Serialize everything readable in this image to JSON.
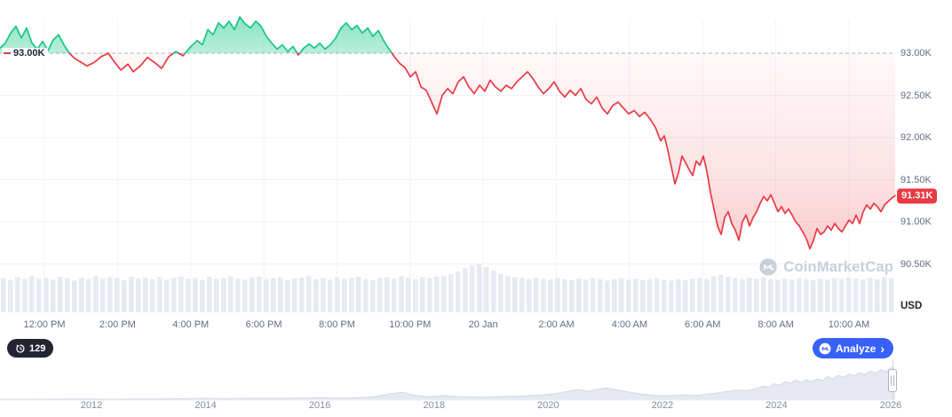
{
  "chart": {
    "baseline_label": "93.00K",
    "current_price_label": "91.31K",
    "unit_label": "USD",
    "y_ticks": [
      {
        "label": "93.00K",
        "value": 93.0
      },
      {
        "label": "92.50K",
        "value": 92.5
      },
      {
        "label": "92.00K",
        "value": 92.0
      },
      {
        "label": "91.50K",
        "value": 91.5
      },
      {
        "label": "91.00K",
        "value": 91.0
      },
      {
        "label": "90.50K",
        "value": 90.5
      }
    ],
    "x_ticks": [
      "12:00 PM",
      "2:00 PM",
      "4:00 PM",
      "6:00 PM",
      "8:00 PM",
      "10:00 PM",
      "20 Jan",
      "2:00 AM",
      "4:00 AM",
      "6:00 AM",
      "8:00 AM",
      "10:00 AM"
    ]
  },
  "controls": {
    "history_count": "129",
    "analyze_label": "Analyze"
  },
  "watermark": {
    "text": "CoinMarketCap"
  },
  "chart_data": {
    "type": "line",
    "title": "",
    "unit": "USD",
    "baseline": 93.0,
    "current": 91.31,
    "ylim": [
      90.3,
      93.5
    ],
    "up_color": "#16c784",
    "down_color": "#ea3943",
    "x_tick_labels": [
      "12:00 PM",
      "2:00 PM",
      "4:00 PM",
      "6:00 PM",
      "8:00 PM",
      "10:00 PM",
      "20 Jan",
      "2:00 AM",
      "4:00 AM",
      "6:00 AM",
      "8:00 AM",
      "10:00 AM"
    ],
    "series": [
      {
        "name": "price",
        "points": [
          [
            0,
            93.06
          ],
          [
            6,
            93.12
          ],
          [
            12,
            93.24
          ],
          [
            18,
            93.32
          ],
          [
            24,
            93.18
          ],
          [
            30,
            93.3
          ],
          [
            36,
            93.12
          ],
          [
            42,
            93.05
          ],
          [
            48,
            93.14
          ],
          [
            54,
            93.03
          ],
          [
            60,
            93.16
          ],
          [
            66,
            93.22
          ],
          [
            72,
            93.1
          ],
          [
            78,
            93.0
          ],
          [
            84,
            92.94
          ],
          [
            90,
            92.9
          ],
          [
            98,
            92.85
          ],
          [
            106,
            92.89
          ],
          [
            114,
            92.96
          ],
          [
            122,
            93.0
          ],
          [
            128,
            92.91
          ],
          [
            136,
            92.8
          ],
          [
            144,
            92.87
          ],
          [
            150,
            92.78
          ],
          [
            158,
            92.85
          ],
          [
            166,
            92.95
          ],
          [
            174,
            92.89
          ],
          [
            182,
            92.82
          ],
          [
            190,
            92.96
          ],
          [
            198,
            93.02
          ],
          [
            206,
            92.97
          ],
          [
            214,
            93.07
          ],
          [
            222,
            93.15
          ],
          [
            228,
            93.1
          ],
          [
            234,
            93.28
          ],
          [
            240,
            93.22
          ],
          [
            246,
            93.36
          ],
          [
            252,
            93.3
          ],
          [
            258,
            93.38
          ],
          [
            264,
            93.28
          ],
          [
            270,
            93.43
          ],
          [
            276,
            93.35
          ],
          [
            282,
            93.3
          ],
          [
            288,
            93.38
          ],
          [
            294,
            93.32
          ],
          [
            300,
            93.2
          ],
          [
            306,
            93.12
          ],
          [
            312,
            93.05
          ],
          [
            318,
            93.1
          ],
          [
            324,
            93.02
          ],
          [
            330,
            93.08
          ],
          [
            336,
            92.98
          ],
          [
            342,
            93.06
          ],
          [
            348,
            93.11
          ],
          [
            354,
            93.06
          ],
          [
            360,
            93.12
          ],
          [
            366,
            93.05
          ],
          [
            372,
            93.1
          ],
          [
            378,
            93.18
          ],
          [
            384,
            93.3
          ],
          [
            390,
            93.36
          ],
          [
            396,
            93.28
          ],
          [
            402,
            93.33
          ],
          [
            408,
            93.24
          ],
          [
            414,
            93.3
          ],
          [
            420,
            93.2
          ],
          [
            426,
            93.27
          ],
          [
            432,
            93.15
          ],
          [
            438,
            93.05
          ],
          [
            444,
            92.96
          ],
          [
            450,
            92.88
          ],
          [
            456,
            92.83
          ],
          [
            462,
            92.72
          ],
          [
            468,
            92.78
          ],
          [
            474,
            92.6
          ],
          [
            480,
            92.56
          ],
          [
            486,
            92.42
          ],
          [
            492,
            92.28
          ],
          [
            498,
            92.5
          ],
          [
            504,
            92.58
          ],
          [
            510,
            92.52
          ],
          [
            516,
            92.66
          ],
          [
            522,
            92.72
          ],
          [
            528,
            92.6
          ],
          [
            534,
            92.52
          ],
          [
            540,
            92.62
          ],
          [
            546,
            92.55
          ],
          [
            552,
            92.68
          ],
          [
            558,
            92.6
          ],
          [
            564,
            92.55
          ],
          [
            570,
            92.62
          ],
          [
            576,
            92.58
          ],
          [
            582,
            92.66
          ],
          [
            588,
            92.72
          ],
          [
            594,
            92.78
          ],
          [
            600,
            92.7
          ],
          [
            606,
            92.6
          ],
          [
            612,
            92.52
          ],
          [
            618,
            92.58
          ],
          [
            624,
            92.66
          ],
          [
            630,
            92.55
          ],
          [
            636,
            92.48
          ],
          [
            642,
            92.56
          ],
          [
            648,
            92.5
          ],
          [
            654,
            92.58
          ],
          [
            660,
            92.45
          ],
          [
            666,
            92.4
          ],
          [
            672,
            92.48
          ],
          [
            678,
            92.35
          ],
          [
            684,
            92.28
          ],
          [
            690,
            92.38
          ],
          [
            696,
            92.42
          ],
          [
            702,
            92.35
          ],
          [
            708,
            92.28
          ],
          [
            714,
            92.32
          ],
          [
            720,
            92.25
          ],
          [
            726,
            92.3
          ],
          [
            732,
            92.22
          ],
          [
            738,
            92.12
          ],
          [
            744,
            91.96
          ],
          [
            748,
            92.02
          ],
          [
            752,
            91.85
          ],
          [
            756,
            91.65
          ],
          [
            760,
            91.45
          ],
          [
            764,
            91.58
          ],
          [
            768,
            91.78
          ],
          [
            772,
            91.7
          ],
          [
            776,
            91.62
          ],
          [
            780,
            91.55
          ],
          [
            784,
            91.72
          ],
          [
            788,
            91.67
          ],
          [
            792,
            91.78
          ],
          [
            796,
            91.6
          ],
          [
            800,
            91.35
          ],
          [
            804,
            91.15
          ],
          [
            808,
            90.95
          ],
          [
            812,
            90.85
          ],
          [
            816,
            91.05
          ],
          [
            820,
            91.12
          ],
          [
            824,
            90.98
          ],
          [
            828,
            90.9
          ],
          [
            832,
            90.78
          ],
          [
            836,
            91.0
          ],
          [
            840,
            91.08
          ],
          [
            844,
            90.95
          ],
          [
            848,
            91.05
          ],
          [
            852,
            91.12
          ],
          [
            856,
            91.22
          ],
          [
            860,
            91.3
          ],
          [
            864,
            91.25
          ],
          [
            868,
            91.32
          ],
          [
            872,
            91.22
          ],
          [
            876,
            91.12
          ],
          [
            880,
            91.18
          ],
          [
            884,
            91.1
          ],
          [
            888,
            91.15
          ],
          [
            892,
            91.08
          ],
          [
            896,
            91.0
          ],
          [
            900,
            90.95
          ],
          [
            904,
            90.88
          ],
          [
            908,
            90.8
          ],
          [
            912,
            90.68
          ],
          [
            916,
            90.78
          ],
          [
            920,
            90.92
          ],
          [
            924,
            90.85
          ],
          [
            928,
            90.88
          ],
          [
            932,
            90.95
          ],
          [
            936,
            90.9
          ],
          [
            940,
            90.98
          ],
          [
            944,
            90.92
          ],
          [
            948,
            90.88
          ],
          [
            952,
            90.95
          ],
          [
            956,
            91.02
          ],
          [
            960,
            90.98
          ],
          [
            964,
            91.08
          ],
          [
            968,
            90.98
          ],
          [
            972,
            91.12
          ],
          [
            976,
            91.2
          ],
          [
            980,
            91.15
          ],
          [
            984,
            91.22
          ],
          [
            988,
            91.18
          ],
          [
            992,
            91.12
          ],
          [
            996,
            91.2
          ],
          [
            1000,
            91.24
          ],
          [
            1004,
            91.28
          ],
          [
            1008,
            91.31
          ]
        ]
      }
    ],
    "volume": [
      0.7,
      0.66,
      0.72,
      0.68,
      0.74,
      0.69,
      0.71,
      0.67,
      0.73,
      0.7,
      0.65,
      0.71,
      0.68,
      0.74,
      0.69,
      0.72,
      0.7,
      0.66,
      0.73,
      0.69,
      0.71,
      0.68,
      0.72,
      0.67,
      0.7,
      0.73,
      0.69,
      0.71,
      0.66,
      0.72,
      0.68,
      0.7,
      0.74,
      0.69,
      0.67,
      0.71,
      0.73,
      0.68,
      0.7,
      0.72,
      0.66,
      0.69,
      0.71,
      0.74,
      0.68,
      0.7,
      0.67,
      0.72,
      0.69,
      0.71,
      0.73,
      0.68,
      0.66,
      0.7,
      0.72,
      0.69,
      0.74,
      0.71,
      0.68,
      0.72,
      0.7,
      0.73,
      0.75,
      0.78,
      0.84,
      0.9,
      0.96,
      1.0,
      0.93,
      0.86,
      0.79,
      0.75,
      0.72,
      0.7,
      0.68,
      0.71,
      0.69,
      0.67,
      0.7,
      0.68,
      0.66,
      0.69,
      0.67,
      0.7,
      0.68,
      0.65,
      0.68,
      0.7,
      0.67,
      0.69,
      0.66,
      0.68,
      0.7,
      0.67,
      0.65,
      0.68,
      0.66,
      0.69,
      0.71,
      0.68,
      0.74,
      0.77,
      0.73,
      0.7,
      0.68,
      0.71,
      0.69,
      0.72,
      0.68,
      0.66,
      0.69,
      0.67,
      0.7,
      0.68,
      0.66,
      0.69,
      0.67,
      0.7,
      0.68,
      0.71,
      0.69,
      0.67,
      0.7,
      0.68,
      0.72,
      0.7
    ],
    "navigator": {
      "type": "area",
      "year_ticks": [
        "2012",
        "2014",
        "2016",
        "2018",
        "2020",
        "2022",
        "2024",
        "2026"
      ],
      "points": [
        [
          0,
          0.02
        ],
        [
          40,
          0.02
        ],
        [
          80,
          0.03
        ],
        [
          103,
          0.03
        ],
        [
          120,
          0.02
        ],
        [
          150,
          0.03
        ],
        [
          180,
          0.03
        ],
        [
          210,
          0.04
        ],
        [
          232,
          0.05
        ],
        [
          250,
          0.04
        ],
        [
          280,
          0.05
        ],
        [
          310,
          0.05
        ],
        [
          340,
          0.06
        ],
        [
          360,
          0.07
        ],
        [
          380,
          0.06
        ],
        [
          400,
          0.07
        ],
        [
          420,
          0.09
        ],
        [
          440,
          0.18
        ],
        [
          455,
          0.22
        ],
        [
          465,
          0.14
        ],
        [
          480,
          0.1
        ],
        [
          489,
          0.11
        ],
        [
          500,
          0.13
        ],
        [
          515,
          0.1
        ],
        [
          530,
          0.09
        ],
        [
          545,
          0.08
        ],
        [
          560,
          0.1
        ],
        [
          575,
          0.11
        ],
        [
          590,
          0.12
        ],
        [
          605,
          0.14
        ],
        [
          617,
          0.16
        ],
        [
          630,
          0.2
        ],
        [
          642,
          0.26
        ],
        [
          652,
          0.3
        ],
        [
          662,
          0.25
        ],
        [
          672,
          0.3
        ],
        [
          682,
          0.34
        ],
        [
          692,
          0.3
        ],
        [
          702,
          0.26
        ],
        [
          712,
          0.21
        ],
        [
          722,
          0.17
        ],
        [
          734,
          0.14
        ],
        [
          746,
          0.12
        ],
        [
          758,
          0.13
        ],
        [
          770,
          0.15
        ],
        [
          782,
          0.13
        ],
        [
          794,
          0.16
        ],
        [
          806,
          0.19
        ],
        [
          818,
          0.24
        ],
        [
          830,
          0.28
        ],
        [
          842,
          0.27
        ],
        [
          852,
          0.33
        ],
        [
          860,
          0.4
        ],
        [
          866,
          0.36
        ],
        [
          872,
          0.46
        ],
        [
          878,
          0.42
        ],
        [
          884,
          0.52
        ],
        [
          890,
          0.47
        ],
        [
          896,
          0.56
        ],
        [
          902,
          0.5
        ],
        [
          908,
          0.57
        ],
        [
          914,
          0.52
        ],
        [
          920,
          0.6
        ],
        [
          926,
          0.55
        ],
        [
          932,
          0.66
        ],
        [
          938,
          0.6
        ],
        [
          944,
          0.7
        ],
        [
          950,
          0.64
        ],
        [
          956,
          0.74
        ],
        [
          962,
          0.68
        ],
        [
          968,
          0.78
        ],
        [
          974,
          0.72
        ],
        [
          980,
          0.82
        ],
        [
          986,
          0.76
        ],
        [
          992,
          0.86
        ],
        [
          998,
          0.8
        ],
        [
          1003,
          0.92
        ],
        [
          1008,
          0.86
        ]
      ]
    }
  }
}
